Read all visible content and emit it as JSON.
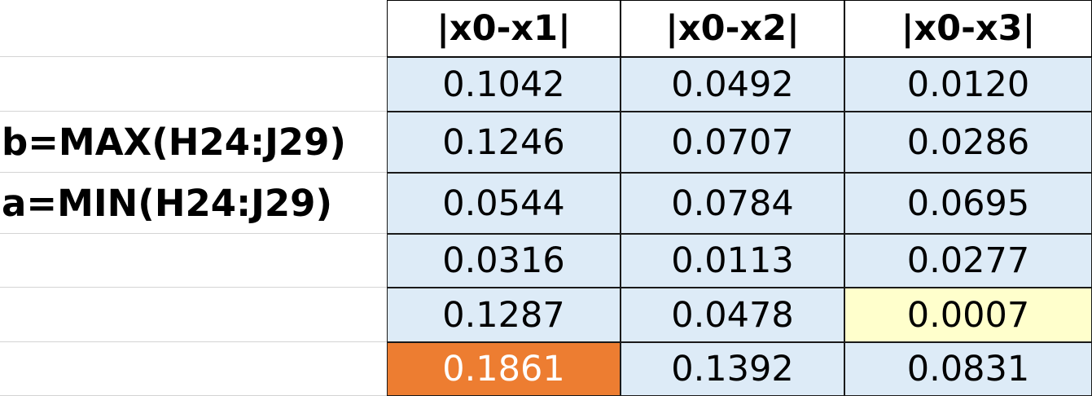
{
  "labels": [
    "b=MAX(H24:J29)",
    "a=MIN(H24:J29)"
  ],
  "table": {
    "header": [
      "|x0-x1|",
      "|x0-x2|",
      "|x0-x3|"
    ],
    "rows": [
      [
        "0.1042",
        "0.0492",
        "0.0120"
      ],
      [
        "0.1246",
        "0.0707",
        "0.0286"
      ],
      [
        "0.0544",
        "0.0784",
        "0.0695"
      ],
      [
        "0.0316",
        "0.0113",
        "0.0277"
      ],
      [
        "0.1287",
        "0.0478",
        "0.0007"
      ],
      [
        "0.1861",
        "0.1392",
        "0.0831"
      ]
    ]
  }
}
